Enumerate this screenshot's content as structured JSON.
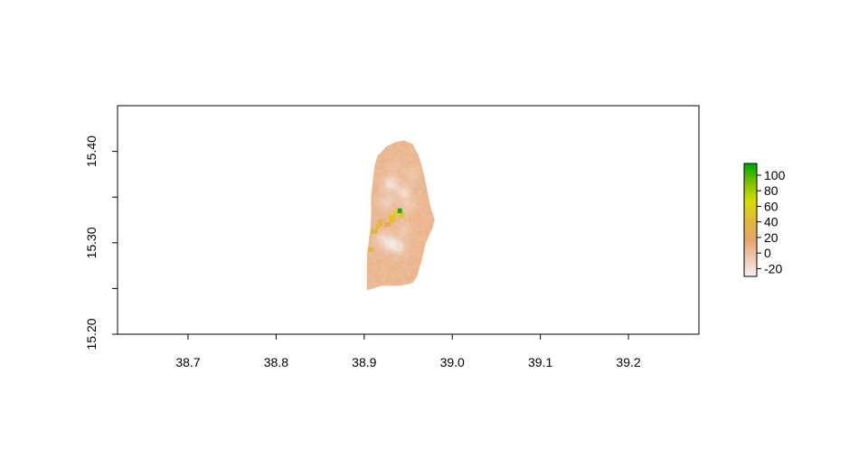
{
  "chart_data": {
    "type": "heatmap",
    "title": "",
    "xlabel": "",
    "ylabel": "",
    "xlim": [
      38.62,
      39.28
    ],
    "ylim": [
      15.2,
      15.45
    ],
    "x_ticks": [
      "38.7",
      "38.8",
      "38.9",
      "39.0",
      "39.1",
      "39.2"
    ],
    "x_tick_values": [
      38.7,
      38.8,
      38.9,
      39.0,
      39.1,
      39.2
    ],
    "y_ticks": [
      "15.20",
      "15.30",
      "15.40"
    ],
    "y_tick_values": [
      15.2,
      15.3,
      15.4
    ],
    "y_minor_tick_values": [
      15.25,
      15.35
    ],
    "grid": false,
    "legend_position": "right",
    "colorbar": {
      "ticks": [
        "100",
        "80",
        "60",
        "40",
        "20",
        "0",
        "-20"
      ],
      "tick_values": [
        100,
        80,
        60,
        40,
        20,
        0,
        -20
      ],
      "range": [
        -30,
        115
      ],
      "colors": [
        "#f2f2f2",
        "#eec9b0",
        "#e8a36c",
        "#e0b93a",
        "#d9dc00",
        "#7bc300",
        "#00a600"
      ]
    },
    "region_outline": [
      [
        38.903,
        15.248
      ],
      [
        38.903,
        15.285
      ],
      [
        38.905,
        15.3
      ],
      [
        38.907,
        15.315
      ],
      [
        38.908,
        15.33
      ],
      [
        38.908,
        15.35
      ],
      [
        38.91,
        15.37
      ],
      [
        38.912,
        15.385
      ],
      [
        38.915,
        15.395
      ],
      [
        38.925,
        15.405
      ],
      [
        38.935,
        15.41
      ],
      [
        38.945,
        15.412
      ],
      [
        38.955,
        15.408
      ],
      [
        38.962,
        15.395
      ],
      [
        38.968,
        15.375
      ],
      [
        38.972,
        15.355
      ],
      [
        38.975,
        15.34
      ],
      [
        38.98,
        15.325
      ],
      [
        38.977,
        15.315
      ],
      [
        38.97,
        15.3
      ],
      [
        38.965,
        15.28
      ],
      [
        38.96,
        15.263
      ],
      [
        38.955,
        15.256
      ],
      [
        38.94,
        15.253
      ],
      [
        38.92,
        15.253
      ],
      [
        38.91,
        15.25
      ]
    ],
    "base_value": 5,
    "highlights": [
      {
        "x": 38.94,
        "y": 15.335,
        "value": 110
      },
      {
        "x": 38.935,
        "y": 15.333,
        "value": 60
      },
      {
        "x": 38.943,
        "y": 15.33,
        "value": 55
      },
      {
        "x": 38.932,
        "y": 15.327,
        "value": 50
      },
      {
        "x": 38.915,
        "y": 15.318,
        "value": 45
      },
      {
        "x": 38.918,
        "y": 15.322,
        "value": 40
      },
      {
        "x": 38.912,
        "y": 15.313,
        "value": 35
      },
      {
        "x": 38.907,
        "y": 15.293,
        "value": 40
      },
      {
        "x": 38.927,
        "y": 15.32,
        "value": 25
      }
    ],
    "low_spots": [
      {
        "x": 38.93,
        "y": 15.365,
        "value": -25
      },
      {
        "x": 38.945,
        "y": 15.355,
        "value": -20
      },
      {
        "x": 38.925,
        "y": 15.345,
        "value": -15
      },
      {
        "x": 38.95,
        "y": 15.34,
        "value": -10
      },
      {
        "x": 38.93,
        "y": 15.3,
        "value": -25
      },
      {
        "x": 38.94,
        "y": 15.295,
        "value": -20
      },
      {
        "x": 38.92,
        "y": 15.305,
        "value": -15
      },
      {
        "x": 38.945,
        "y": 15.315,
        "value": -10
      },
      {
        "x": 38.955,
        "y": 15.375,
        "value": -10
      },
      {
        "x": 38.935,
        "y": 15.385,
        "value": -5
      }
    ]
  }
}
